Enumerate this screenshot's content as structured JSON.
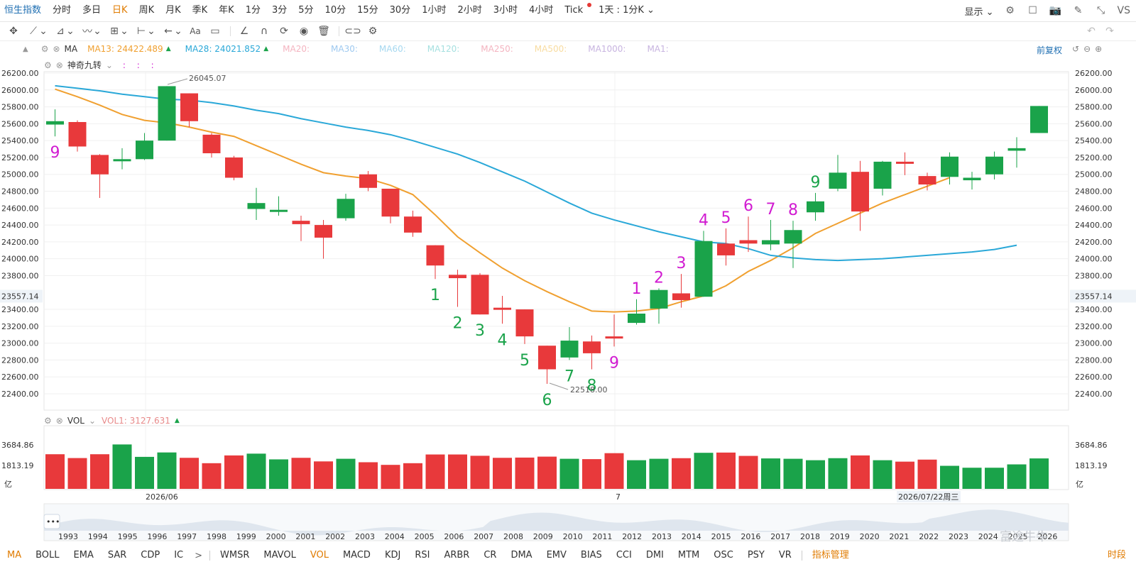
{
  "toolbar": {
    "title": "恒生指数",
    "periods": [
      "分时",
      "多日",
      "日K",
      "周K",
      "月K",
      "季K",
      "年K",
      "1分",
      "3分",
      "5分",
      "10分",
      "15分",
      "30分",
      "1小时",
      "2小时",
      "3小时",
      "4小时",
      "Tick"
    ],
    "active_period": "日K",
    "range_label": "1天 : 1分K",
    "display_label": "显示",
    "vs_label": "VS"
  },
  "ma_header": {
    "label": "MA",
    "items": [
      {
        "text": "MA13: 24422.489",
        "color": "#f0a030",
        "arrow": "▲"
      },
      {
        "text": "MA28: 24021.852",
        "color": "#2aa8d8",
        "arrow": "▲"
      },
      {
        "text": "MA20:",
        "color": "#f4b4c0",
        "arrow": ""
      },
      {
        "text": "MA30:",
        "color": "#9ec9f0",
        "arrow": ""
      },
      {
        "text": "MA60:",
        "color": "#a6d8f0",
        "arrow": ""
      },
      {
        "text": "MA120:",
        "color": "#a6e0e0",
        "arrow": ""
      },
      {
        "text": "MA250:",
        "color": "#f4b4c0",
        "arrow": ""
      },
      {
        "text": "MA500:",
        "color": "#f8dca0",
        "arrow": ""
      },
      {
        "text": "MA1000:",
        "color": "#c8b4e0",
        "arrow": ""
      },
      {
        "text": "MA1:",
        "color": "#c8b4e0",
        "arrow": ""
      }
    ],
    "adjust_label": "前复权"
  },
  "nine_header": {
    "label": "神奇九转",
    "dots": ":  :  :"
  },
  "vol_header": {
    "label": "VOL",
    "value": "VOL1: 3127.631",
    "arrow": "▲"
  },
  "colors": {
    "up": "#1aa34a",
    "down": "#e8393b",
    "ma13": "#f0a030",
    "ma28": "#2aa8d8",
    "nine_down": "#1aa34a",
    "nine_up": "#d11bd1"
  },
  "price_axis": {
    "ticks": [
      "26200.00",
      "26000.00",
      "25800.00",
      "25600.00",
      "25400.00",
      "25200.00",
      "25000.00",
      "24800.00",
      "24600.00",
      "24400.00",
      "24200.00",
      "24000.00",
      "23800.00",
      "23557.14",
      "23400.00",
      "23200.00",
      "23000.00",
      "22800.00",
      "22600.00",
      "22400.00"
    ]
  },
  "vol_axis": {
    "ticks": [
      "3684.86",
      "1813.19",
      "亿"
    ]
  },
  "annotations": {
    "high": "26045.07",
    "low": "22518.00"
  },
  "date_axis": {
    "left": "2026/06",
    "mid": "7",
    "cursor": "2026/07/22周三"
  },
  "nav_years": [
    "1993",
    "1994",
    "1995",
    "1996",
    "1997",
    "1998",
    "1999",
    "2000",
    "2001",
    "2002",
    "2003",
    "2004",
    "2005",
    "2006",
    "2007",
    "2008",
    "2009",
    "2010",
    "2011",
    "2012",
    "2013",
    "2014",
    "2015",
    "2016",
    "2017",
    "2018",
    "2019",
    "2020",
    "2021",
    "2022",
    "2023",
    "2024",
    "2025",
    "2026"
  ],
  "indicator_tabs": [
    "MA",
    "BOLL",
    "EMA",
    "SAR",
    "CDP",
    "IC",
    "WMSR",
    "MAVOL",
    "VOL",
    "MACD",
    "KDJ",
    "RSI",
    "ARBR",
    "CR",
    "DMA",
    "EMV",
    "BIAS",
    "CCI",
    "DMI",
    "MTM",
    "OSC",
    "PSY",
    "VR"
  ],
  "active_indicators": [
    "MA",
    "VOL"
  ],
  "indicator_manage_label": "指标管理",
  "segment_label": "时段",
  "watermark": "富途牛牛",
  "chart_data": {
    "type": "candlestick",
    "price_range": [
      22300,
      26300
    ],
    "candles": [
      {
        "o": 25590,
        "c": 25630,
        "h": 25770,
        "l": 25450,
        "nine": "9",
        "nine_pos": "below",
        "nine_color": "up"
      },
      {
        "o": 25620,
        "c": 25330,
        "h": 25640,
        "l": 25270
      },
      {
        "o": 25230,
        "c": 25000,
        "h": 25240,
        "l": 24720
      },
      {
        "o": 25160,
        "c": 25180,
        "h": 25310,
        "l": 25060
      },
      {
        "o": 25180,
        "c": 25400,
        "h": 25490,
        "l": 25170
      },
      {
        "o": 25400,
        "c": 26045,
        "h": 26045,
        "l": 25400
      },
      {
        "o": 25960,
        "c": 25630,
        "h": 25960,
        "l": 25560
      },
      {
        "o": 25470,
        "c": 25250,
        "h": 25490,
        "l": 25200
      },
      {
        "o": 25200,
        "c": 24960,
        "h": 25220,
        "l": 24930
      },
      {
        "o": 24590,
        "c": 24660,
        "h": 24840,
        "l": 24460
      },
      {
        "o": 24560,
        "c": 24580,
        "h": 24740,
        "l": 24510
      },
      {
        "o": 24450,
        "c": 24410,
        "h": 24510,
        "l": 24210
      },
      {
        "o": 24400,
        "c": 24250,
        "h": 24460,
        "l": 24000
      },
      {
        "o": 24480,
        "c": 24710,
        "h": 24770,
        "l": 24450
      },
      {
        "o": 25000,
        "c": 24840,
        "h": 25040,
        "l": 24800
      },
      {
        "o": 24830,
        "c": 24500,
        "h": 24830,
        "l": 24420
      },
      {
        "o": 24500,
        "c": 24310,
        "h": 24570,
        "l": 24260
      },
      {
        "o": 24160,
        "c": 23920,
        "h": 24160,
        "l": 23760,
        "nine": "1",
        "nine_pos": "below",
        "nine_color": "down"
      },
      {
        "o": 23810,
        "c": 23770,
        "h": 23870,
        "l": 23430,
        "nine": "2",
        "nine_pos": "below",
        "nine_color": "down"
      },
      {
        "o": 23810,
        "c": 23340,
        "h": 23830,
        "l": 23340,
        "nine": "3",
        "nine_pos": "below",
        "nine_color": "down"
      },
      {
        "o": 23420,
        "c": 23400,
        "h": 23560,
        "l": 23230,
        "nine": "4",
        "nine_pos": "below",
        "nine_color": "down"
      },
      {
        "o": 23400,
        "c": 23080,
        "h": 23400,
        "l": 22990,
        "nine": "5",
        "nine_pos": "below",
        "nine_color": "down"
      },
      {
        "o": 22970,
        "c": 22690,
        "h": 22970,
        "l": 22518,
        "nine": "6",
        "nine_pos": "below",
        "nine_color": "down"
      },
      {
        "o": 22830,
        "c": 23030,
        "h": 23190,
        "l": 22800,
        "nine": "7",
        "nine_pos": "below",
        "nine_color": "down"
      },
      {
        "o": 23020,
        "c": 22880,
        "h": 23090,
        "l": 22690,
        "nine": "8",
        "nine_pos": "below",
        "nine_color": "down"
      },
      {
        "o": 23080,
        "c": 23060,
        "h": 23340,
        "l": 22960,
        "nine": "9",
        "nine_pos": "below",
        "nine_color": "up"
      },
      {
        "o": 23240,
        "c": 23350,
        "h": 23520,
        "l": 23220,
        "nine": "1",
        "nine_pos": "above",
        "nine_color": "up"
      },
      {
        "o": 23410,
        "c": 23630,
        "h": 23650,
        "l": 23230,
        "nine": "2",
        "nine_pos": "above",
        "nine_color": "up"
      },
      {
        "o": 23590,
        "c": 23510,
        "h": 23820,
        "l": 23420,
        "nine": "3",
        "nine_pos": "above",
        "nine_color": "up"
      },
      {
        "o": 23550,
        "c": 24210,
        "h": 24330,
        "l": 23550,
        "nine": "4",
        "nine_pos": "above",
        "nine_color": "up"
      },
      {
        "o": 24180,
        "c": 24040,
        "h": 24360,
        "l": 23920,
        "nine": "5",
        "nine_pos": "above",
        "nine_color": "up"
      },
      {
        "o": 24220,
        "c": 24180,
        "h": 24500,
        "l": 24080,
        "nine": "6",
        "nine_pos": "above",
        "nine_color": "up"
      },
      {
        "o": 24170,
        "c": 24220,
        "h": 24460,
        "l": 24100,
        "nine": "7",
        "nine_pos": "above",
        "nine_color": "up"
      },
      {
        "o": 24180,
        "c": 24340,
        "h": 24450,
        "l": 23890,
        "nine": "8",
        "nine_pos": "above",
        "nine_color": "up"
      },
      {
        "o": 24550,
        "c": 24680,
        "h": 24780,
        "l": 24450,
        "nine": "9",
        "nine_pos": "above",
        "nine_color": "down"
      },
      {
        "o": 24830,
        "c": 25020,
        "h": 25230,
        "l": 24800
      },
      {
        "o": 25030,
        "c": 24560,
        "h": 25160,
        "l": 24330
      },
      {
        "o": 24830,
        "c": 25150,
        "h": 25160,
        "l": 24750
      },
      {
        "o": 25150,
        "c": 25130,
        "h": 25260,
        "l": 24990
      },
      {
        "o": 24980,
        "c": 24880,
        "h": 25020,
        "l": 24810
      },
      {
        "o": 24970,
        "c": 25210,
        "h": 25260,
        "l": 24880
      },
      {
        "o": 24930,
        "c": 24960,
        "h": 25030,
        "l": 24820
      },
      {
        "o": 25000,
        "c": 25210,
        "h": 25270,
        "l": 24940
      },
      {
        "o": 25280,
        "c": 25310,
        "h": 25440,
        "l": 25080
      },
      {
        "o": 25490,
        "c": 25810,
        "h": 25810,
        "l": 25490
      }
    ],
    "ma13": [
      26010,
      25920,
      25820,
      25710,
      25640,
      25610,
      25560,
      25500,
      25450,
      25340,
      25230,
      25120,
      25020,
      24980,
      24950,
      24870,
      24760,
      24520,
      24260,
      24070,
      23890,
      23740,
      23610,
      23490,
      23380,
      23370,
      23380,
      23410,
      23490,
      23560,
      23680,
      23850,
      23980,
      24130,
      24300,
      24420,
      24540,
      24660,
      24760,
      24860,
      24960
    ],
    "ma28": [
      26050,
      26020,
      25990,
      25950,
      25920,
      25890,
      25880,
      25850,
      25810,
      25760,
      25720,
      25660,
      25610,
      25560,
      25520,
      25470,
      25400,
      25320,
      25240,
      25140,
      25030,
      24920,
      24790,
      24660,
      24540,
      24460,
      24390,
      24320,
      24260,
      24200,
      24180,
      24120,
      24040,
      24010,
      23990,
      23980,
      23990,
      24000,
      24020,
      24040,
      24060,
      24080,
      24110,
      24160
    ],
    "volumes": [
      {
        "v": 2900,
        "d": "down"
      },
      {
        "v": 2580,
        "d": "down"
      },
      {
        "v": 2900,
        "d": "down"
      },
      {
        "v": 3720,
        "d": "up"
      },
      {
        "v": 2680,
        "d": "up"
      },
      {
        "v": 3050,
        "d": "up"
      },
      {
        "v": 2600,
        "d": "down"
      },
      {
        "v": 2150,
        "d": "down"
      },
      {
        "v": 2800,
        "d": "down"
      },
      {
        "v": 2950,
        "d": "up"
      },
      {
        "v": 2470,
        "d": "up"
      },
      {
        "v": 2600,
        "d": "down"
      },
      {
        "v": 2300,
        "d": "down"
      },
      {
        "v": 2520,
        "d": "up"
      },
      {
        "v": 2230,
        "d": "down"
      },
      {
        "v": 2010,
        "d": "down"
      },
      {
        "v": 2150,
        "d": "down"
      },
      {
        "v": 2880,
        "d": "down"
      },
      {
        "v": 2880,
        "d": "down"
      },
      {
        "v": 2770,
        "d": "down"
      },
      {
        "v": 2600,
        "d": "down"
      },
      {
        "v": 2620,
        "d": "down"
      },
      {
        "v": 2700,
        "d": "down"
      },
      {
        "v": 2520,
        "d": "up"
      },
      {
        "v": 2490,
        "d": "down"
      },
      {
        "v": 2990,
        "d": "down"
      },
      {
        "v": 2400,
        "d": "up"
      },
      {
        "v": 2520,
        "d": "up"
      },
      {
        "v": 2570,
        "d": "down"
      },
      {
        "v": 3020,
        "d": "up"
      },
      {
        "v": 3040,
        "d": "down"
      },
      {
        "v": 2760,
        "d": "down"
      },
      {
        "v": 2550,
        "d": "up"
      },
      {
        "v": 2520,
        "d": "up"
      },
      {
        "v": 2400,
        "d": "up"
      },
      {
        "v": 2570,
        "d": "up"
      },
      {
        "v": 2800,
        "d": "down"
      },
      {
        "v": 2400,
        "d": "up"
      },
      {
        "v": 2280,
        "d": "down"
      },
      {
        "v": 2450,
        "d": "down"
      },
      {
        "v": 1930,
        "d": "up"
      },
      {
        "v": 1770,
        "d": "up"
      },
      {
        "v": 1770,
        "d": "up"
      },
      {
        "v": 2050,
        "d": "up"
      },
      {
        "v": 2550,
        "d": "up"
      }
    ],
    "vol_range": [
      0,
      4100
    ]
  }
}
